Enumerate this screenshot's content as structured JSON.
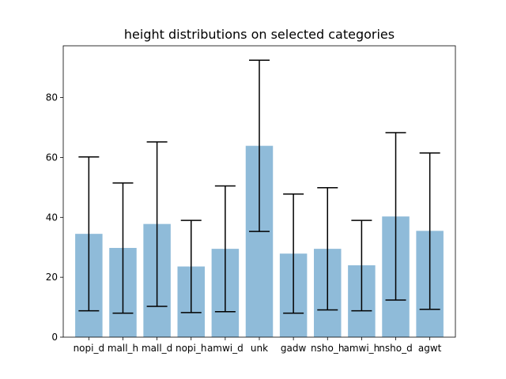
{
  "chart_data": {
    "type": "bar",
    "title": "height distributions on selected categories",
    "xlabel": "",
    "ylabel": "",
    "categories": [
      "nopi_d",
      "mall_h",
      "mall_d",
      "nopi_h",
      "amwi_d",
      "unk",
      "gadw",
      "nsho_h",
      "amwi_h",
      "nsho_d",
      "agwt"
    ],
    "values": [
      34.5,
      29.8,
      37.8,
      23.6,
      29.5,
      63.9,
      27.9,
      29.5,
      24.0,
      40.3,
      35.5
    ],
    "error_low": [
      8.8,
      8.0,
      10.3,
      8.2,
      8.5,
      35.3,
      8.0,
      9.1,
      8.8,
      12.4,
      9.3
    ],
    "error_high": [
      60.2,
      51.5,
      65.2,
      39.0,
      50.5,
      92.5,
      47.8,
      49.9,
      39.0,
      68.3,
      61.5
    ],
    "ylim": [
      0,
      97.3
    ],
    "yticks": [
      0,
      20,
      40,
      60,
      80
    ],
    "grid": false,
    "bar_color": "#1f77b4",
    "bar_alpha": 0.5,
    "error_color": "#000000"
  }
}
